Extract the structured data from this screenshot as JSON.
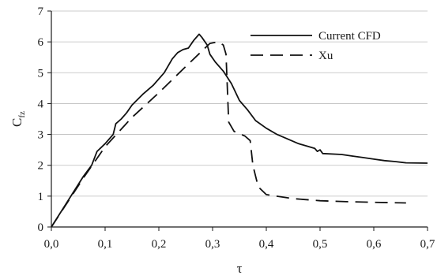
{
  "chart_data": {
    "type": "line",
    "title": "",
    "xlabel": "τ",
    "ylabel": "C",
    "ylabel_subscript": "fz",
    "xlim": [
      0,
      0.7
    ],
    "ylim": [
      0,
      7
    ],
    "xticks": [
      0,
      0.1,
      0.2,
      0.3,
      0.4,
      0.5,
      0.6,
      0.7
    ],
    "xtick_labels": [
      "0,0",
      "0,1",
      "0,2",
      "0,3",
      "0,4",
      "0,5",
      "0,6",
      "0,7"
    ],
    "yticks": [
      0,
      1,
      2,
      3,
      4,
      5,
      6,
      7
    ],
    "ytick_labels": [
      "0",
      "1",
      "2",
      "3",
      "4",
      "5",
      "6",
      "7"
    ],
    "grid": "horizontal",
    "legend_position": "top-right",
    "series": [
      {
        "name": "Current CFD",
        "style": "solid",
        "color": "#111111",
        "points": [
          [
            0.0,
            0.0
          ],
          [
            0.02,
            0.55
          ],
          [
            0.04,
            1.1
          ],
          [
            0.06,
            1.65
          ],
          [
            0.075,
            2.0
          ],
          [
            0.085,
            2.45
          ],
          [
            0.1,
            2.7
          ],
          [
            0.115,
            3.0
          ],
          [
            0.12,
            3.35
          ],
          [
            0.13,
            3.5
          ],
          [
            0.14,
            3.7
          ],
          [
            0.15,
            3.95
          ],
          [
            0.17,
            4.3
          ],
          [
            0.19,
            4.6
          ],
          [
            0.21,
            5.0
          ],
          [
            0.225,
            5.45
          ],
          [
            0.235,
            5.65
          ],
          [
            0.245,
            5.75
          ],
          [
            0.255,
            5.8
          ],
          [
            0.265,
            6.05
          ],
          [
            0.275,
            6.25
          ],
          [
            0.28,
            6.15
          ],
          [
            0.29,
            5.9
          ],
          [
            0.295,
            5.6
          ],
          [
            0.305,
            5.35
          ],
          [
            0.32,
            5.05
          ],
          [
            0.335,
            4.65
          ],
          [
            0.35,
            4.1
          ],
          [
            0.365,
            3.8
          ],
          [
            0.38,
            3.45
          ],
          [
            0.4,
            3.2
          ],
          [
            0.42,
            3.0
          ],
          [
            0.44,
            2.85
          ],
          [
            0.46,
            2.7
          ],
          [
            0.48,
            2.6
          ],
          [
            0.49,
            2.55
          ],
          [
            0.495,
            2.45
          ],
          [
            0.5,
            2.5
          ],
          [
            0.505,
            2.38
          ],
          [
            0.54,
            2.35
          ],
          [
            0.56,
            2.3
          ],
          [
            0.58,
            2.25
          ],
          [
            0.6,
            2.2
          ],
          [
            0.62,
            2.15
          ],
          [
            0.64,
            2.12
          ],
          [
            0.66,
            2.08
          ],
          [
            0.7,
            2.07
          ]
        ]
      },
      {
        "name": "Xu",
        "style": "dashed",
        "color": "#111111",
        "points": [
          [
            0.0,
            0.0
          ],
          [
            0.03,
            0.8
          ],
          [
            0.06,
            1.6
          ],
          [
            0.1,
            2.6
          ],
          [
            0.15,
            3.55
          ],
          [
            0.2,
            4.35
          ],
          [
            0.25,
            5.2
          ],
          [
            0.28,
            5.7
          ],
          [
            0.295,
            5.95
          ],
          [
            0.31,
            6.0
          ],
          [
            0.32,
            5.9
          ],
          [
            0.325,
            5.6
          ],
          [
            0.33,
            3.4
          ],
          [
            0.34,
            3.1
          ],
          [
            0.36,
            2.95
          ],
          [
            0.37,
            2.8
          ],
          [
            0.375,
            2.0
          ],
          [
            0.385,
            1.3
          ],
          [
            0.4,
            1.05
          ],
          [
            0.45,
            0.92
          ],
          [
            0.5,
            0.85
          ],
          [
            0.55,
            0.82
          ],
          [
            0.6,
            0.8
          ],
          [
            0.66,
            0.78
          ]
        ]
      }
    ]
  }
}
